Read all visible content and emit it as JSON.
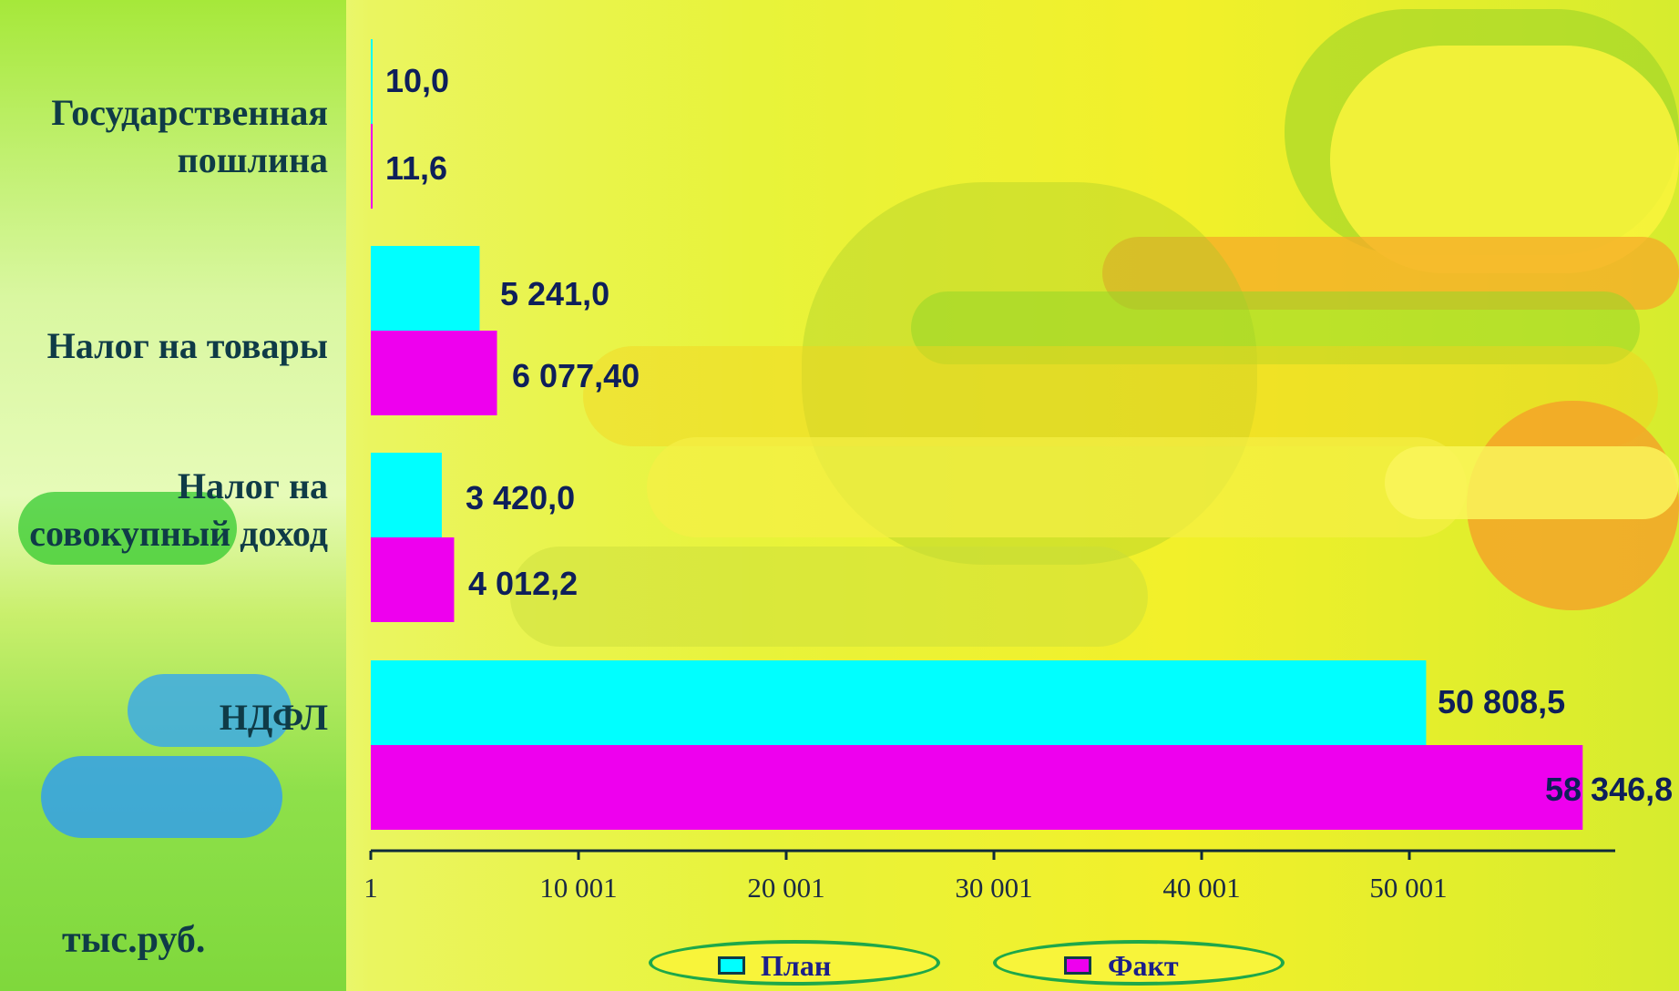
{
  "chart_data": {
    "type": "bar",
    "orientation": "horizontal",
    "categories": [
      "Государственная пошлина",
      "Налог на товары",
      "Налог на совокупный доход",
      "НДФЛ"
    ],
    "series": [
      {
        "name": "План",
        "color": "#00ffff",
        "values": [
          10.0,
          5241.0,
          3420.0,
          50808.5
        ],
        "labels": [
          "10,0",
          "5 241,0",
          "3 420,0",
          "50 808,5"
        ]
      },
      {
        "name": "Факт",
        "color": "#ee00ee",
        "values": [
          11.6,
          6077.4,
          4012.2,
          58346.8
        ],
        "labels": [
          "11,6",
          "6 077,40",
          "4 012,2",
          "58 346,8"
        ]
      }
    ],
    "category_label_lines": [
      [
        "Государственная",
        "пошлина"
      ],
      [
        "Налог на товары"
      ],
      [
        "Налог на",
        "совокупный доход"
      ],
      [
        "НДФЛ"
      ]
    ],
    "x_ticks": [
      "1",
      "10 001",
      "20 001",
      "30 001",
      "40 001",
      "50 001"
    ],
    "x_tick_values": [
      1,
      10001,
      20001,
      30001,
      40001,
      50001
    ],
    "xlim": [
      1,
      60001
    ],
    "unit_label": "тыс.руб.",
    "legend_placement": "bottom",
    "grid": false
  }
}
